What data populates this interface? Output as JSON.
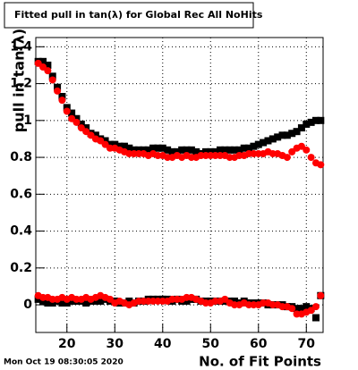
{
  "chart_data": {
    "type": "scatter",
    "title": "Fitted pull in tan(λ) for Global Rec All NoHits",
    "y_label": "pull in tan(λ)",
    "x_label": "No. of Fit Points",
    "timestamp": "Mon Oct 19 08:30:05 2020",
    "xlim": [
      13.5,
      73.5
    ],
    "ylim": [
      -0.15,
      1.45
    ],
    "xticks": [
      20,
      30,
      40,
      50,
      60,
      70
    ],
    "yticks": [
      0,
      0.2,
      0.4,
      0.6,
      0.8,
      1,
      1.2,
      1.4
    ],
    "grid": true,
    "x": [
      14,
      15,
      16,
      17,
      18,
      19,
      20,
      21,
      22,
      23,
      24,
      25,
      26,
      27,
      28,
      29,
      30,
      31,
      32,
      33,
      34,
      35,
      36,
      37,
      38,
      39,
      40,
      41,
      42,
      43,
      44,
      45,
      46,
      47,
      48,
      49,
      50,
      51,
      52,
      53,
      54,
      55,
      56,
      57,
      58,
      59,
      60,
      61,
      62,
      63,
      64,
      65,
      66,
      67,
      68,
      69,
      70,
      71,
      72,
      73
    ],
    "series": [
      {
        "color": "#000000",
        "marker": "square",
        "values": [
          1.32,
          1.32,
          1.3,
          1.24,
          1.18,
          1.13,
          1.07,
          1.04,
          1.01,
          0.98,
          0.96,
          0.93,
          0.92,
          0.9,
          0.89,
          0.87,
          0.87,
          0.86,
          0.86,
          0.85,
          0.84,
          0.84,
          0.84,
          0.84,
          0.85,
          0.85,
          0.85,
          0.84,
          0.83,
          0.83,
          0.84,
          0.84,
          0.84,
          0.83,
          0.82,
          0.83,
          0.83,
          0.83,
          0.84,
          0.84,
          0.84,
          0.84,
          0.84,
          0.85,
          0.85,
          0.86,
          0.87,
          0.88,
          0.89,
          0.9,
          0.91,
          0.92,
          0.92,
          0.93,
          0.94,
          0.96,
          0.98,
          0.99,
          1.0,
          1.0
        ]
      },
      {
        "color": "#ff0000",
        "marker": "circle",
        "values": [
          1.31,
          1.29,
          1.27,
          1.22,
          1.16,
          1.11,
          1.05,
          1.01,
          0.99,
          0.96,
          0.94,
          0.92,
          0.9,
          0.89,
          0.87,
          0.85,
          0.85,
          0.84,
          0.83,
          0.82,
          0.82,
          0.82,
          0.82,
          0.81,
          0.82,
          0.81,
          0.81,
          0.8,
          0.8,
          0.81,
          0.8,
          0.81,
          0.8,
          0.8,
          0.81,
          0.81,
          0.81,
          0.81,
          0.81,
          0.81,
          0.8,
          0.8,
          0.81,
          0.81,
          0.82,
          0.82,
          0.82,
          0.82,
          0.83,
          0.82,
          0.82,
          0.81,
          0.8,
          0.83,
          0.85,
          0.86,
          0.84,
          0.8,
          0.77,
          0.76
        ]
      },
      {
        "color": "#000000",
        "marker": "square",
        "values": [
          0.03,
          0.02,
          0.01,
          0.01,
          0.02,
          0.01,
          0.01,
          0.02,
          0.02,
          0.02,
          0.01,
          0.02,
          0.02,
          0.02,
          0.03,
          0.02,
          0.02,
          0.01,
          0.01,
          0.02,
          0.01,
          0.02,
          0.02,
          0.03,
          0.03,
          0.03,
          0.03,
          0.03,
          0.02,
          0.03,
          0.02,
          0.02,
          0.03,
          0.03,
          0.02,
          0.02,
          0.02,
          0.02,
          0.02,
          0.02,
          0.02,
          0.02,
          0.01,
          0.02,
          0.01,
          0.01,
          0.01,
          0.01,
          0,
          0,
          0,
          0,
          -0.01,
          -0.01,
          -0.02,
          -0.02,
          -0.01,
          -0.02,
          -0.07,
          0.05
        ]
      },
      {
        "color": "#ff0000",
        "marker": "circle",
        "values": [
          0.05,
          0.04,
          0.04,
          0.03,
          0.03,
          0.04,
          0.03,
          0.04,
          0.03,
          0.03,
          0.04,
          0.03,
          0.04,
          0.05,
          0.04,
          0.03,
          0.01,
          0.02,
          0.01,
          0,
          0.01,
          0.02,
          0.02,
          0.02,
          0.02,
          0.02,
          0.02,
          0.02,
          0.03,
          0.03,
          0.03,
          0.04,
          0.04,
          0.03,
          0.02,
          0.01,
          0.01,
          0.02,
          0.02,
          0.03,
          0.01,
          0,
          0,
          0.01,
          0,
          0,
          0,
          0.01,
          0.01,
          0,
          0,
          -0.01,
          -0.01,
          -0.02,
          -0.05,
          -0.05,
          -0.04,
          -0.03,
          -0.01,
          0.05
        ]
      }
    ]
  }
}
